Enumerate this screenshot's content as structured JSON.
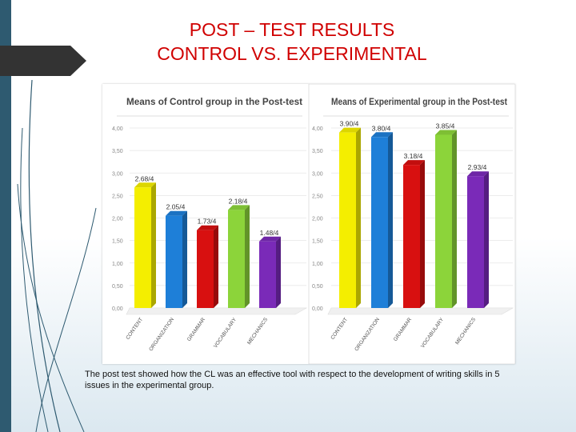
{
  "slide": {
    "title_line1": "POST – TEST RESULTS",
    "title_line2": "CONTROL VS. EXPERIMENTAL",
    "caption": "The post test showed how the CL  was an effective tool with respect to the development of writing skills in 5 issues in the experimental group."
  },
  "chart_data": [
    {
      "type": "bar",
      "title": "Means of Control group in the Post-test",
      "categories": [
        "CONTENT",
        "ORGANIZATION",
        "GRAMMAR",
        "VOCABULARY",
        "MECHANICS"
      ],
      "values": [
        2.68,
        2.05,
        1.73,
        2.18,
        1.48
      ],
      "data_labels": [
        "2.68/4",
        "2.05/4",
        "1.73/4",
        "2.18/4",
        "1.48/4"
      ],
      "colors": [
        "#f4ee00",
        "#1e7fd8",
        "#d81010",
        "#8cd43a",
        "#7a2ab8"
      ],
      "yticks": [
        "0,00",
        "0,50",
        "1,00",
        "1,50",
        "2,00",
        "2,50",
        "3,00",
        "3,50",
        "4,00"
      ],
      "ylim": [
        0,
        4
      ],
      "xlabel": "",
      "ylabel": ""
    },
    {
      "type": "bar",
      "title": "Means of Experimental group in the Post-test",
      "categories": [
        "CONTENT",
        "ORGANIZATION",
        "GRAMMAR",
        "VOCABULARY",
        "MECHANICS"
      ],
      "values": [
        3.9,
        3.8,
        3.18,
        3.85,
        2.93
      ],
      "data_labels": [
        "3.90/4",
        "3.80/4",
        "3.18/4",
        "3.85/4",
        "2.93/4"
      ],
      "colors": [
        "#f4ee00",
        "#1e7fd8",
        "#d81010",
        "#8cd43a",
        "#7a2ab8"
      ],
      "yticks": [
        "0,00",
        "0,50",
        "1,00",
        "1,50",
        "2,00",
        "2,50",
        "3,00",
        "3,50",
        "4,00"
      ],
      "ylim": [
        0,
        4
      ],
      "xlabel": "",
      "ylabel": ""
    }
  ]
}
